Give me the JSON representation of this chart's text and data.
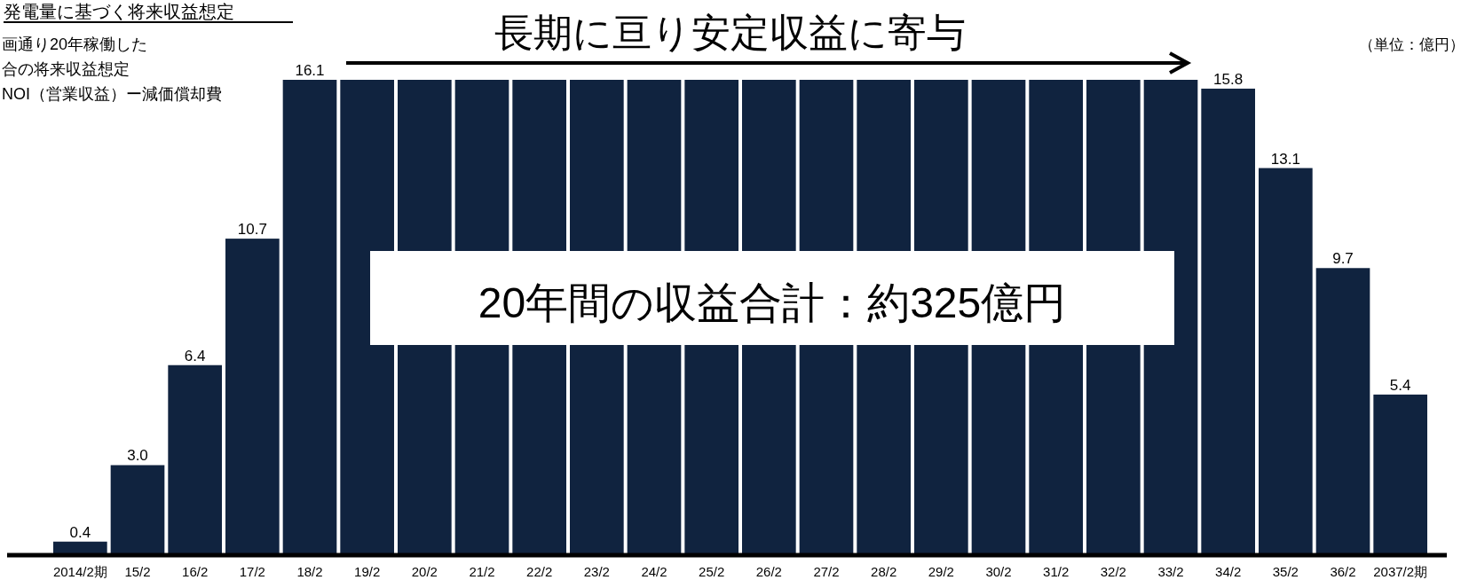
{
  "chart_data": {
    "type": "bar",
    "title": "発電量に基づく将来収益想定",
    "annotations": [
      "画通り20年稼働した",
      "合の将来収益想定",
      "NOI（営業収益）ー減価償却費",
      "（単位：億円）",
      "長期に亘り安定収益に寄与",
      "20年間の収益合計：約325億円"
    ],
    "categories": [
      "2014/2期",
      "15/2",
      "16/2",
      "17/2",
      "18/2",
      "19/2",
      "20/2",
      "21/2",
      "22/2",
      "23/2",
      "24/2",
      "25/2",
      "26/2",
      "27/2",
      "28/2",
      "29/2",
      "30/2",
      "31/2",
      "32/2",
      "33/2",
      "34/2",
      "35/2",
      "36/2",
      "2037/2期"
    ],
    "values": [
      0.4,
      3.0,
      6.4,
      10.7,
      16.1,
      16.1,
      16.1,
      16.1,
      16.1,
      16.1,
      16.1,
      16.1,
      16.1,
      16.1,
      16.1,
      16.1,
      16.1,
      16.1,
      16.1,
      16.1,
      15.8,
      13.1,
      9.7,
      5.4
    ],
    "value_labels": [
      "0.4",
      "3.0",
      "6.4",
      "10.7",
      "16.1",
      null,
      null,
      null,
      null,
      null,
      null,
      null,
      null,
      null,
      null,
      null,
      null,
      null,
      null,
      null,
      "15.8",
      "13.1",
      "9.7",
      "5.4"
    ],
    "color": "#10233f"
  }
}
